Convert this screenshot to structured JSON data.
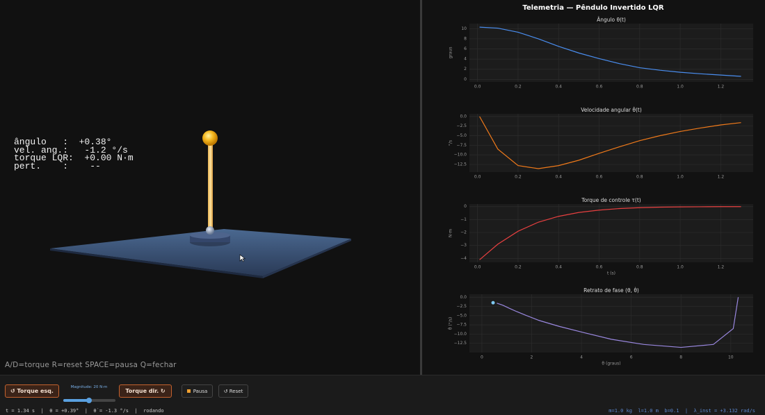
{
  "scene": {
    "readout": [
      "ângulo   :  +0.38°",
      "vel. ang.:   -1.2 °/s",
      "torque LQR:  +0.00 N·m",
      "pert.    :    --"
    ],
    "hint": "A/D=torque R=reset SPACE=pausa Q=fechar"
  },
  "telemetry": {
    "title": "Telemetria — Pêndulo Invertido LQR",
    "charts": [
      {
        "type": "line",
        "title": "Ângulo θ(t)",
        "ylabel": "graus",
        "color": "#4a8ef0",
        "x": [
          0.01,
          0.1,
          0.2,
          0.3,
          0.4,
          0.5,
          0.6,
          0.7,
          0.8,
          0.9,
          1.0,
          1.1,
          1.2,
          1.3
        ],
        "values": [
          10.3,
          10.1,
          9.3,
          8.0,
          6.5,
          5.2,
          4.1,
          3.1,
          2.3,
          1.8,
          1.4,
          1.1,
          0.85,
          0.6
        ],
        "xlim": [
          -0.04,
          1.36
        ],
        "ylim": [
          -0.5,
          11
        ],
        "xticks": [
          {
            "value": 0,
            "label": "0.0"
          },
          {
            "value": 0.2,
            "label": "0.2"
          },
          {
            "value": 0.4,
            "label": "0.4"
          },
          {
            "value": 0.6,
            "label": "0.6"
          },
          {
            "value": 0.8,
            "label": "0.8"
          },
          {
            "value": 1,
            "label": "1.0"
          },
          {
            "value": 1.2,
            "label": "1.2"
          }
        ],
        "yticks": [
          0,
          2,
          4,
          6,
          8,
          10
        ]
      },
      {
        "type": "line",
        "title": "Velocidade angular θ̇(t)",
        "ylabel": "°/s",
        "color": "#f07a1a",
        "x": [
          0.01,
          0.1,
          0.2,
          0.3,
          0.4,
          0.5,
          0.6,
          0.7,
          0.8,
          0.9,
          1.0,
          1.1,
          1.2,
          1.3
        ],
        "values": [
          0,
          -8.5,
          -12.8,
          -13.6,
          -12.8,
          -11.4,
          -9.6,
          -7.9,
          -6.3,
          -5.0,
          -3.9,
          -3.0,
          -2.2,
          -1.6
        ],
        "xlim": [
          -0.04,
          1.36
        ],
        "ylim": [
          -14.5,
          0.7
        ],
        "xticks": [
          {
            "value": 0,
            "label": "0.0"
          },
          {
            "value": 0.2,
            "label": "0.2"
          },
          {
            "value": 0.4,
            "label": "0.4"
          },
          {
            "value": 0.6,
            "label": "0.6"
          },
          {
            "value": 0.8,
            "label": "0.8"
          },
          {
            "value": 1,
            "label": "1.0"
          },
          {
            "value": 1.2,
            "label": "1.2"
          }
        ],
        "yticks": [
          {
            "value": 0,
            "label": "0.0"
          },
          {
            "value": -2.5,
            "label": "−2.5"
          },
          {
            "value": -5,
            "label": "−5.0"
          },
          {
            "value": -7.5,
            "label": "−7.5"
          },
          {
            "value": -10,
            "label": "−10.0"
          },
          {
            "value": -12.5,
            "label": "−12.5"
          }
        ]
      },
      {
        "type": "line",
        "title": "Torque de controle τ(t)",
        "ylabel": "N·m",
        "xlabel": "t (s)",
        "color": "#e84040",
        "x": [
          0.01,
          0.1,
          0.2,
          0.3,
          0.4,
          0.5,
          0.6,
          0.7,
          0.8,
          0.9,
          1.0,
          1.1,
          1.2,
          1.3
        ],
        "values": [
          -4.1,
          -2.9,
          -1.9,
          -1.2,
          -0.75,
          -0.45,
          -0.27,
          -0.15,
          -0.08,
          -0.04,
          -0.02,
          -0.01,
          0,
          0
        ],
        "xlim": [
          -0.04,
          1.36
        ],
        "ylim": [
          -4.3,
          0.2
        ],
        "xticks": [
          {
            "value": 0,
            "label": "0.0"
          },
          {
            "value": 0.2,
            "label": "0.2"
          },
          {
            "value": 0.4,
            "label": "0.4"
          },
          {
            "value": 0.6,
            "label": "0.6"
          },
          {
            "value": 0.8,
            "label": "0.8"
          },
          {
            "value": 1,
            "label": "1.0"
          },
          {
            "value": 1.2,
            "label": "1.2"
          }
        ],
        "yticks": [
          {
            "value": -4,
            "label": "−4"
          },
          {
            "value": -3,
            "label": "−3"
          },
          {
            "value": -2,
            "label": "−2"
          },
          {
            "value": -1,
            "label": "−1"
          },
          0
        ]
      },
      {
        "type": "line",
        "title": "Retrato de fase  (θ, θ̇)",
        "ylabel": "θ̇ (°/s)",
        "xlabel": "θ (graus)",
        "color": "#9a88e0",
        "x": [
          10.3,
          10.1,
          9.3,
          8.0,
          6.5,
          5.2,
          4.1,
          3.1,
          2.3,
          1.8,
          1.4,
          1.1,
          0.85,
          0.6
        ],
        "values": [
          0,
          -8.5,
          -12.8,
          -13.6,
          -12.8,
          -11.4,
          -9.6,
          -7.9,
          -6.3,
          -5.0,
          -3.9,
          -3.0,
          -2.2,
          -1.6
        ],
        "current": {
          "x": 0.45,
          "y": -1.5,
          "color": "#7ec8f0"
        },
        "xlim": [
          -0.5,
          10.9
        ],
        "ylim": [
          -15,
          0.8
        ],
        "xticks": [
          0,
          2,
          4,
          6,
          8,
          10
        ],
        "yticks": [
          {
            "value": 0,
            "label": "0.0"
          },
          {
            "value": -2.5,
            "label": "−2.5"
          },
          {
            "value": -5,
            "label": "−5.0"
          },
          {
            "value": -7.5,
            "label": "−7.5"
          },
          {
            "value": -10,
            "label": "−10.0"
          },
          {
            "value": -12.5,
            "label": "−12.5"
          }
        ]
      }
    ]
  },
  "controls": {
    "torque_left": "↺  Torque esq.",
    "magnitude": "Magnitude: 20 N·m",
    "torque_right": "Torque dir.  ↻",
    "pause": "Pausa",
    "reset": "↺  Reset"
  },
  "status": {
    "left": "t = 1.34 s  |  θ = +0.39°  |  θ̇ = -1.3 °/s  |  rodando",
    "right": "m=1.0 kg  l=1.0 m  b=0.1  |  λ_inst = +3.132 rad/s"
  }
}
